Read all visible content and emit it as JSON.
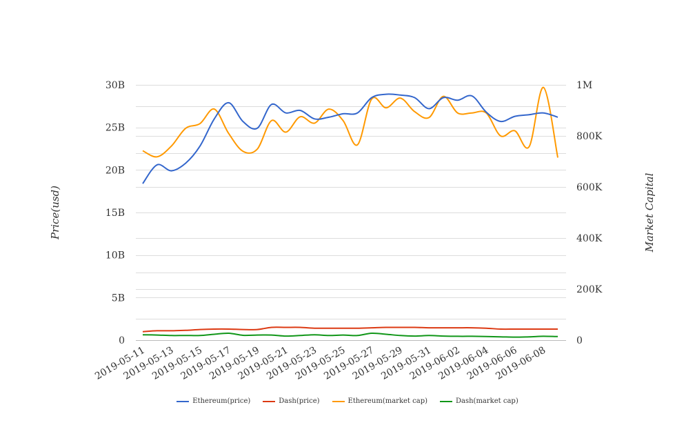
{
  "chart_data": {
    "type": "line",
    "x": [
      "2019-05-11",
      "2019-05-12",
      "2019-05-13",
      "2019-05-14",
      "2019-05-15",
      "2019-05-16",
      "2019-05-17",
      "2019-05-18",
      "2019-05-19",
      "2019-05-20",
      "2019-05-21",
      "2019-05-22",
      "2019-05-23",
      "2019-05-24",
      "2019-05-25",
      "2019-05-26",
      "2019-05-27",
      "2019-05-28",
      "2019-05-29",
      "2019-05-30",
      "2019-05-31",
      "2019-06-01",
      "2019-06-02",
      "2019-06-03",
      "2019-06-04",
      "2019-06-05",
      "2019-06-06",
      "2019-06-07",
      "2019-06-08",
      "2019-06-09"
    ],
    "x_tick_labels": [
      "2019-05-11",
      "2019-05-13",
      "2019-05-15",
      "2019-05-17",
      "2019-05-19",
      "2019-05-21",
      "2019-05-23",
      "2019-05-25",
      "2019-05-27",
      "2019-05-29",
      "2019-05-31",
      "2019-06-02",
      "2019-06-04",
      "2019-06-06",
      "2019-06-08"
    ],
    "y_left": {
      "label": "Price(usd)",
      "ylim": [
        0,
        30000000000
      ],
      "tick_labels": [
        "0",
        "5B",
        "10B",
        "15B",
        "20B",
        "25B",
        "30B"
      ]
    },
    "y_right": {
      "label": "Market Capital",
      "ylim": [
        0,
        1000000
      ],
      "tick_labels": [
        "0",
        "200K",
        "400K",
        "600K",
        "800K",
        "1M"
      ]
    },
    "grid": true,
    "legend_position": "bottom",
    "series": [
      {
        "name": "Ethereum(price)",
        "axis": "left",
        "color": "#3366cc",
        "values": [
          18400000000.0,
          20600000000.0,
          19900000000.0,
          20800000000.0,
          22800000000.0,
          26000000000.0,
          27900000000.0,
          25700000000.0,
          24900000000.0,
          27700000000.0,
          26700000000.0,
          27000000000.0,
          26000000000.0,
          26200000000.0,
          26600000000.0,
          26700000000.0,
          28500000000.0,
          28900000000.0,
          28800000000.0,
          28500000000.0,
          27200000000.0,
          28500000000.0,
          28200000000.0,
          28700000000.0,
          26800000000.0,
          25700000000.0,
          26300000000.0,
          26500000000.0,
          26700000000.0,
          26200000000.0
        ]
      },
      {
        "name": "Dash(price)",
        "axis": "left",
        "color": "#dc3912",
        "values": [
          1000000000.0,
          1100000000.0,
          1100000000.0,
          1150000000.0,
          1250000000.0,
          1300000000.0,
          1300000000.0,
          1250000000.0,
          1250000000.0,
          1500000000.0,
          1500000000.0,
          1500000000.0,
          1400000000.0,
          1400000000.0,
          1400000000.0,
          1400000000.0,
          1450000000.0,
          1500000000.0,
          1500000000.0,
          1500000000.0,
          1450000000.0,
          1450000000.0,
          1450000000.0,
          1450000000.0,
          1400000000.0,
          1300000000.0,
          1300000000.0,
          1300000000.0,
          1300000000.0,
          1300000000.0
        ]
      },
      {
        "name": "Ethereum(market cap)",
        "axis": "right",
        "color": "#ff9900",
        "values": [
          742000,
          718000,
          760000,
          830000,
          848000,
          905000,
          810000,
          740000,
          748000,
          860000,
          815000,
          875000,
          850000,
          905000,
          860000,
          765000,
          945000,
          910000,
          948000,
          895000,
          872000,
          955000,
          890000,
          890000,
          890000,
          800000,
          820000,
          758000,
          990000,
          715000
        ]
      },
      {
        "name": "Dash(market cap)",
        "axis": "right",
        "color": "#109618",
        "values": [
          21000,
          20000,
          18000,
          18500,
          18000,
          23000,
          27000,
          19000,
          20000,
          20000,
          16000,
          18000,
          21000,
          18000,
          20000,
          18000,
          27000,
          23000,
          18000,
          16000,
          18000,
          16000,
          15000,
          15000,
          14000,
          13000,
          12000,
          13000,
          15000,
          14000
        ]
      }
    ]
  }
}
